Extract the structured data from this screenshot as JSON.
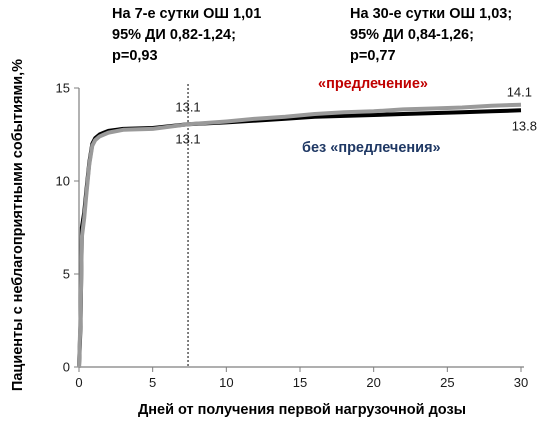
{
  "chart_data": {
    "type": "line",
    "title": "",
    "xlabel": "Дней от получения первой нагрузочной дозы",
    "ylabel": "Пациенты с неблагоприятными событиями,%",
    "xlim": [
      0,
      30
    ],
    "ylim": [
      0,
      15
    ],
    "x_ticks": [
      "0",
      "5",
      "10",
      "15",
      "20",
      "25",
      "30"
    ],
    "y_ticks": [
      "0",
      "5",
      "10",
      "15"
    ],
    "grid": false,
    "annotations": [
      {
        "lines": [
          "На 7-е сутки ОШ 1,01",
          "95% ДИ 0,82-1,24;",
          "p=0,93"
        ]
      },
      {
        "lines": [
          "На 30-е сутки ОШ 1,03;",
          "95% ДИ 0,84-1,26;",
          "p=0,77"
        ]
      }
    ],
    "vline": {
      "x": 7.4
    },
    "value_labels": {
      "day7_top": "13.1",
      "day7_bottom": "13.1",
      "day30_top": "14.1",
      "day30_bottom": "13.8"
    },
    "series": [
      {
        "name": "без «предлечения»",
        "color": "#000000",
        "label_color": "#1f3864",
        "points": [
          [
            0,
            0
          ],
          [
            0.1,
            2.2
          ],
          [
            0.2,
            7.5
          ],
          [
            0.35,
            8.3
          ],
          [
            0.5,
            9.5
          ],
          [
            0.7,
            11.0
          ],
          [
            0.9,
            12.0
          ],
          [
            1.1,
            12.3
          ],
          [
            1.4,
            12.5
          ],
          [
            1.7,
            12.6
          ],
          [
            2,
            12.7
          ],
          [
            3,
            12.8
          ],
          [
            5,
            12.85
          ],
          [
            7.4,
            13.05
          ],
          [
            10,
            13.15
          ],
          [
            12,
            13.25
          ],
          [
            14,
            13.35
          ],
          [
            16,
            13.45
          ],
          [
            18,
            13.5
          ],
          [
            20,
            13.55
          ],
          [
            22,
            13.6
          ],
          [
            24,
            13.65
          ],
          [
            26,
            13.7
          ],
          [
            28,
            13.75
          ],
          [
            30,
            13.8
          ]
        ]
      },
      {
        "name": "«предлечение»",
        "color": "#9a9a9a",
        "label_color": "#c00000",
        "points": [
          [
            0,
            0
          ],
          [
            0.1,
            2.6
          ],
          [
            0.2,
            7.0
          ],
          [
            0.35,
            8.0
          ],
          [
            0.5,
            9.3
          ],
          [
            0.7,
            10.9
          ],
          [
            0.9,
            11.9
          ],
          [
            1.1,
            12.2
          ],
          [
            1.4,
            12.4
          ],
          [
            1.7,
            12.5
          ],
          [
            2,
            12.6
          ],
          [
            3,
            12.75
          ],
          [
            5,
            12.8
          ],
          [
            7.4,
            13.05
          ],
          [
            10,
            13.2
          ],
          [
            12,
            13.35
          ],
          [
            14,
            13.45
          ],
          [
            16,
            13.6
          ],
          [
            18,
            13.7
          ],
          [
            20,
            13.75
          ],
          [
            22,
            13.85
          ],
          [
            24,
            13.9
          ],
          [
            26,
            13.95
          ],
          [
            28,
            14.05
          ],
          [
            30,
            14.1
          ]
        ]
      }
    ]
  }
}
